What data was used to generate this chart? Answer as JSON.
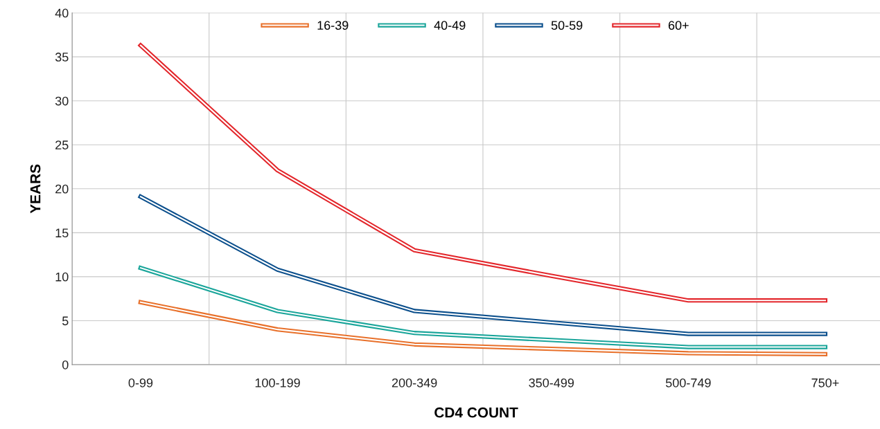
{
  "chart_data": {
    "type": "line",
    "xlabel": "CD4 COUNT",
    "ylabel": "YEARS",
    "categories": [
      "0-99",
      "100-199",
      "200-349",
      "350-499",
      "500-749",
      "750+"
    ],
    "series": [
      {
        "name": "16-39",
        "color": "#e8702a",
        "values": [
          7.1,
          4.0,
          2.3,
          1.8,
          1.3,
          1.2
        ]
      },
      {
        "name": "40-49",
        "color": "#1aa59a",
        "values": [
          11.0,
          6.1,
          3.6,
          2.8,
          2.0,
          2.0
        ]
      },
      {
        "name": "50-59",
        "color": "#0b4f8c",
        "values": [
          19.1,
          10.8,
          6.1,
          4.8,
          3.5,
          3.5
        ]
      },
      {
        "name": "60+",
        "color": "#e3262b",
        "values": [
          36.3,
          22.1,
          13.0,
          10.1,
          7.3,
          7.3
        ]
      }
    ],
    "ylim": [
      0,
      40
    ],
    "yticks": [
      0,
      5,
      10,
      15,
      20,
      25,
      30,
      35,
      40
    ],
    "grid": true,
    "legend": "top",
    "line_style": "solid",
    "marker": "none"
  }
}
